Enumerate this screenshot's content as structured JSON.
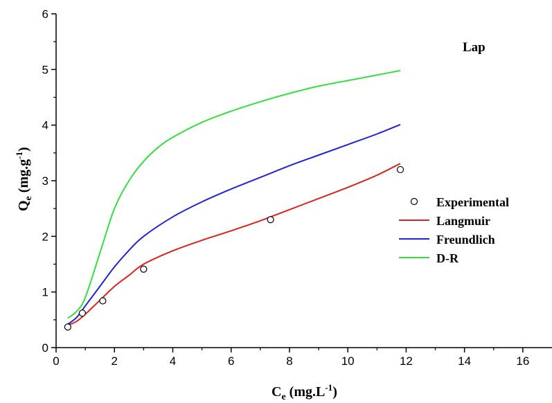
{
  "chart_data": {
    "type": "line",
    "title": "",
    "annotation": "Lap",
    "xlabel": {
      "main": "C",
      "sub": "e",
      "unit_pre": " (mg.L",
      "sup": "-1",
      "unit_post": ")"
    },
    "ylabel": {
      "main": "Q",
      "sub": "e",
      "unit_pre": " (mg.g",
      "sup": "-1",
      "unit_post": ")"
    },
    "xlim": [
      0,
      17
    ],
    "ylim": [
      0,
      6
    ],
    "x_ticks": [
      0,
      2,
      4,
      6,
      8,
      10,
      12,
      14,
      16
    ],
    "y_ticks": [
      0,
      1,
      2,
      3,
      4,
      5,
      6
    ],
    "grid": false,
    "legend_position": "right",
    "series": [
      {
        "name": "Experimental",
        "kind": "scatter",
        "color": "#000000",
        "points": [
          [
            0.4,
            0.37
          ],
          [
            0.9,
            0.62
          ],
          [
            1.6,
            0.84
          ],
          [
            3.0,
            1.41
          ],
          [
            7.35,
            2.3
          ],
          [
            11.8,
            3.2
          ]
        ]
      },
      {
        "name": "Langmuir",
        "kind": "line",
        "color": "#e0201b",
        "points": [
          [
            0.4,
            0.4
          ],
          [
            0.7,
            0.47
          ],
          [
            1.0,
            0.6
          ],
          [
            1.5,
            0.85
          ],
          [
            2.0,
            1.1
          ],
          [
            2.5,
            1.3
          ],
          [
            3.0,
            1.5
          ],
          [
            4.0,
            1.74
          ],
          [
            5.0,
            1.93
          ],
          [
            6.0,
            2.1
          ],
          [
            7.0,
            2.28
          ],
          [
            8.0,
            2.48
          ],
          [
            9.0,
            2.68
          ],
          [
            10.0,
            2.88
          ],
          [
            11.0,
            3.1
          ],
          [
            11.8,
            3.31
          ]
        ]
      },
      {
        "name": "Freundlich",
        "kind": "line",
        "color": "#1f22d6",
        "points": [
          [
            0.4,
            0.42
          ],
          [
            0.7,
            0.54
          ],
          [
            1.0,
            0.75
          ],
          [
            1.5,
            1.1
          ],
          [
            2.0,
            1.45
          ],
          [
            2.5,
            1.75
          ],
          [
            3.0,
            2.0
          ],
          [
            4.0,
            2.35
          ],
          [
            5.0,
            2.62
          ],
          [
            6.0,
            2.85
          ],
          [
            7.0,
            3.06
          ],
          [
            8.0,
            3.27
          ],
          [
            9.0,
            3.46
          ],
          [
            10.0,
            3.65
          ],
          [
            11.0,
            3.84
          ],
          [
            11.8,
            4.01
          ]
        ]
      },
      {
        "name": "D-R",
        "kind": "line",
        "color": "#34e03a",
        "points": [
          [
            0.4,
            0.53
          ],
          [
            0.7,
            0.65
          ],
          [
            1.0,
            0.9
          ],
          [
            1.5,
            1.7
          ],
          [
            2.0,
            2.5
          ],
          [
            2.5,
            3.0
          ],
          [
            3.0,
            3.35
          ],
          [
            3.5,
            3.6
          ],
          [
            4.0,
            3.78
          ],
          [
            5.0,
            4.05
          ],
          [
            6.0,
            4.25
          ],
          [
            7.0,
            4.42
          ],
          [
            8.0,
            4.57
          ],
          [
            9.0,
            4.7
          ],
          [
            10.0,
            4.8
          ],
          [
            11.0,
            4.9
          ],
          [
            11.8,
            4.98
          ]
        ]
      }
    ]
  }
}
